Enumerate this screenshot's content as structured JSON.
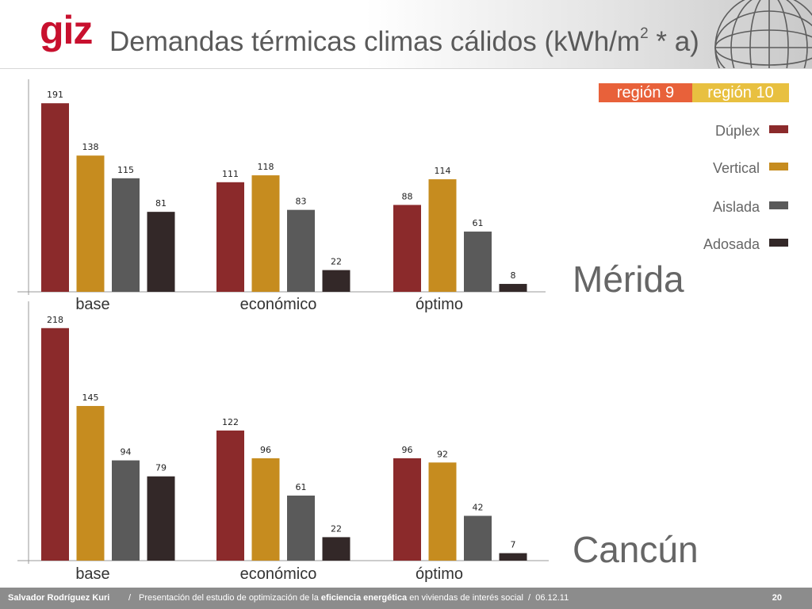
{
  "header": {
    "logo": "giz",
    "title": "Demandas térmicas climas cálidos (kWh/m",
    "title_sup": "2",
    "title_end": " * a)"
  },
  "legend": {
    "regions": [
      {
        "label": "región 9",
        "color": "#e8613a"
      },
      {
        "label": "región 10",
        "color": "#e8c040"
      }
    ],
    "series": [
      {
        "name": "Dúplex",
        "color": "#8b2a2b"
      },
      {
        "name": "Vertical",
        "color": "#c68c1f"
      },
      {
        "name": "Aislada",
        "color": "#5a5a5a"
      },
      {
        "name": "Adosada",
        "color": "#332828"
      }
    ]
  },
  "chart_data": [
    {
      "type": "bar",
      "city": "Mérida",
      "categories": [
        "base",
        "económico",
        "óptimo"
      ],
      "series": [
        {
          "name": "Dúplex",
          "values": [
            191,
            111,
            88
          ]
        },
        {
          "name": "Vertical",
          "values": [
            138,
            118,
            114
          ]
        },
        {
          "name": "Aislada",
          "values": [
            115,
            83,
            61
          ]
        },
        {
          "name": "Adosada",
          "values": [
            81,
            22,
            8
          ]
        }
      ],
      "ylim": [
        0,
        200
      ]
    },
    {
      "type": "bar",
      "city": "Cancún",
      "categories": [
        "base",
        "económico",
        "óptimo"
      ],
      "series": [
        {
          "name": "Dúplex",
          "values": [
            218,
            122,
            96
          ]
        },
        {
          "name": "Vertical",
          "values": [
            145,
            96,
            92
          ]
        },
        {
          "name": "Aislada",
          "values": [
            94,
            61,
            42
          ]
        },
        {
          "name": "Adosada",
          "values": [
            79,
            22,
            7
          ]
        }
      ],
      "ylim": [
        0,
        225
      ]
    }
  ],
  "footer": {
    "author": "Salvador Rodríguez Kuri",
    "separator": "/",
    "presentation_pre": "Presentación del estudio de optimización de la ",
    "presentation_bold": "eficiencia energética",
    "presentation_post": " en viviendas de interés social",
    "date_sep": "/",
    "date": "06.12.11",
    "page": "20"
  }
}
